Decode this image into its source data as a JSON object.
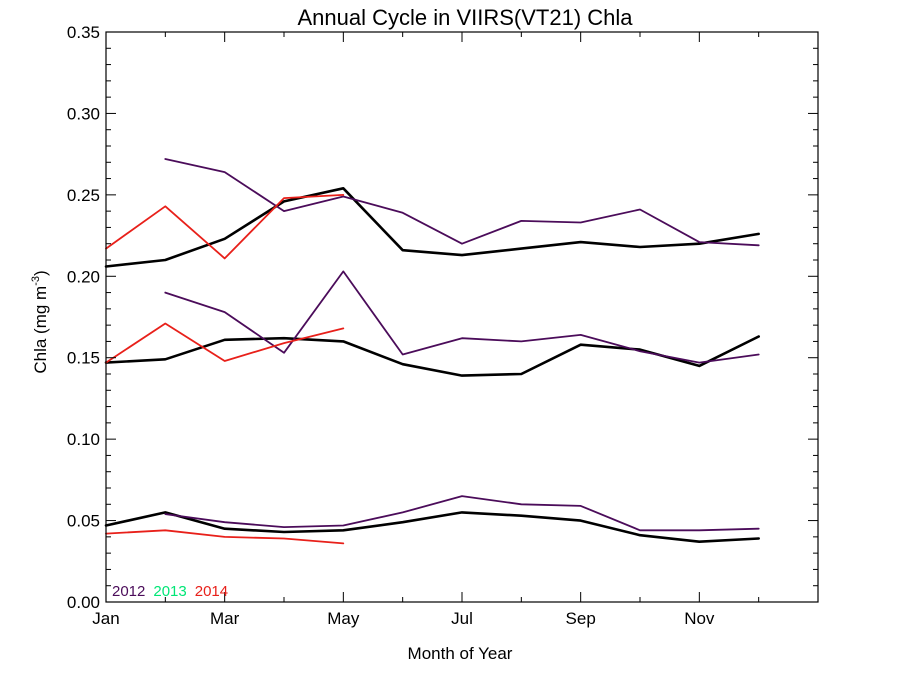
{
  "chart_data": {
    "type": "line",
    "title": "Annual Cycle in VIIRS(VT21) Chla",
    "xlabel": "Month of Year",
    "ylabel": "Chla (mg m",
    "ylabel_unit_exponent": "-3",
    "ylabel_suffix": ")",
    "xlim": [
      1,
      13
    ],
    "ylim": [
      0,
      0.35
    ],
    "grid": false,
    "x_ticks": [
      {
        "value": 1,
        "label": "Jan"
      },
      {
        "value": 3,
        "label": "Mar"
      },
      {
        "value": 5,
        "label": "May"
      },
      {
        "value": 7,
        "label": "Jul"
      },
      {
        "value": 9,
        "label": "Sep"
      },
      {
        "value": 11,
        "label": "Nov"
      }
    ],
    "y_ticks": [
      {
        "value": 0.0,
        "label": "0.00"
      },
      {
        "value": 0.05,
        "label": "0.05"
      },
      {
        "value": 0.1,
        "label": "0.10"
      },
      {
        "value": 0.15,
        "label": "0.15"
      },
      {
        "value": 0.2,
        "label": "0.20"
      },
      {
        "value": 0.25,
        "label": "0.25"
      },
      {
        "value": 0.3,
        "label": "0.30"
      },
      {
        "value": 0.35,
        "label": "0.35"
      }
    ],
    "legend": {
      "placement": "bottom-left",
      "entries": [
        {
          "label": "2012",
          "color": "#4B0C5A"
        },
        {
          "label": "2013",
          "color": "#00E676"
        },
        {
          "label": "2014",
          "color": "#E8201A"
        }
      ]
    },
    "series": [
      {
        "group": "climatology",
        "color": "#000000",
        "stroke_width": 2.6,
        "x": [
          1,
          2,
          3,
          4,
          5,
          6,
          7,
          8,
          9,
          10,
          11,
          12
        ],
        "values": [
          0.206,
          0.21,
          0.223,
          0.246,
          0.254,
          0.216,
          0.213,
          0.217,
          0.221,
          0.218,
          0.22,
          0.226
        ]
      },
      {
        "group": "climatology",
        "color": "#000000",
        "stroke_width": 2.6,
        "x": [
          1,
          2,
          3,
          4,
          5,
          6,
          7,
          8,
          9,
          10,
          11,
          12
        ],
        "values": [
          0.147,
          0.149,
          0.161,
          0.162,
          0.16,
          0.146,
          0.139,
          0.14,
          0.158,
          0.155,
          0.145,
          0.163
        ]
      },
      {
        "group": "climatology",
        "color": "#000000",
        "stroke_width": 2.6,
        "x": [
          1,
          2,
          3,
          4,
          5,
          6,
          7,
          8,
          9,
          10,
          11,
          12
        ],
        "values": [
          0.047,
          0.055,
          0.045,
          0.043,
          0.044,
          0.049,
          0.055,
          0.053,
          0.05,
          0.041,
          0.037,
          0.039
        ]
      },
      {
        "group": "2012",
        "color": "#4B0C5A",
        "stroke_width": 1.8,
        "x": [
          2,
          3,
          4,
          5,
          6,
          7,
          8,
          9,
          10,
          11,
          12
        ],
        "values": [
          0.272,
          0.264,
          0.24,
          0.249,
          0.239,
          0.22,
          0.234,
          0.233,
          0.241,
          0.221,
          0.219
        ]
      },
      {
        "group": "2012",
        "color": "#4B0C5A",
        "stroke_width": 1.8,
        "x": [
          2,
          3,
          4,
          5,
          6,
          7,
          8,
          9,
          10,
          11,
          12
        ],
        "values": [
          0.19,
          0.178,
          0.153,
          0.203,
          0.152,
          0.162,
          0.16,
          0.164,
          0.154,
          0.147,
          0.152
        ]
      },
      {
        "group": "2012",
        "color": "#4B0C5A",
        "stroke_width": 1.8,
        "x": [
          2,
          3,
          4,
          5,
          6,
          7,
          8,
          9,
          10,
          11,
          12
        ],
        "values": [
          0.054,
          0.049,
          0.046,
          0.047,
          0.055,
          0.065,
          0.06,
          0.059,
          0.044,
          0.044,
          0.045
        ]
      },
      {
        "group": "2014",
        "color": "#E8201A",
        "stroke_width": 1.8,
        "x": [
          1,
          2,
          3,
          4,
          5
        ],
        "values": [
          0.217,
          0.243,
          0.211,
          0.248,
          0.25
        ]
      },
      {
        "group": "2014",
        "color": "#E8201A",
        "stroke_width": 1.8,
        "x": [
          1,
          2,
          3,
          4,
          5
        ],
        "values": [
          0.147,
          0.171,
          0.148,
          0.159,
          0.168
        ]
      },
      {
        "group": "2014",
        "color": "#E8201A",
        "stroke_width": 1.8,
        "x": [
          1,
          2,
          3,
          4,
          5
        ],
        "values": [
          0.042,
          0.044,
          0.04,
          0.039,
          0.036
        ]
      }
    ]
  }
}
